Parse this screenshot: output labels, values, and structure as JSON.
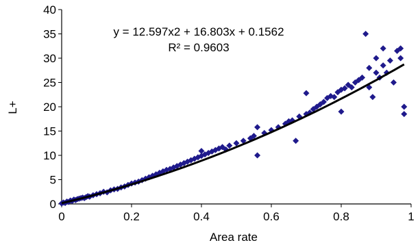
{
  "chart_data": {
    "type": "scatter",
    "title": "",
    "xlabel": "Area rate",
    "ylabel": "L+",
    "xlim": [
      0,
      1
    ],
    "ylim": [
      0,
      40
    ],
    "x_ticks": [
      "0",
      "0.2",
      "0.4",
      "0.6",
      "0.8",
      "1"
    ],
    "y_ticks": [
      "0",
      "5",
      "10",
      "15",
      "20",
      "25",
      "30",
      "35",
      "40"
    ],
    "grid": false,
    "legend": "none",
    "annotations": [
      "y = 12.597x2 + 16.803x + 0.1562",
      "R² = 0.9603"
    ],
    "colors": {
      "points": "#1f1a8c",
      "trendline": "#000000"
    },
    "series": [
      {
        "marker": "diamond",
        "x": [
          0.0,
          0.005,
          0.01,
          0.015,
          0.02,
          0.025,
          0.03,
          0.035,
          0.04,
          0.045,
          0.05,
          0.055,
          0.06,
          0.065,
          0.07,
          0.075,
          0.08,
          0.09,
          0.1,
          0.11,
          0.12,
          0.13,
          0.14,
          0.15,
          0.16,
          0.17,
          0.18,
          0.19,
          0.2,
          0.21,
          0.22,
          0.23,
          0.24,
          0.25,
          0.26,
          0.27,
          0.28,
          0.29,
          0.3,
          0.31,
          0.32,
          0.33,
          0.34,
          0.35,
          0.36,
          0.37,
          0.38,
          0.39,
          0.4,
          0.4,
          0.41,
          0.42,
          0.43,
          0.44,
          0.45,
          0.46,
          0.47,
          0.48,
          0.5,
          0.52,
          0.54,
          0.55,
          0.56,
          0.56,
          0.58,
          0.6,
          0.62,
          0.64,
          0.65,
          0.66,
          0.67,
          0.68,
          0.7,
          0.7,
          0.71,
          0.72,
          0.73,
          0.74,
          0.75,
          0.76,
          0.77,
          0.78,
          0.79,
          0.8,
          0.8,
          0.81,
          0.82,
          0.83,
          0.84,
          0.85,
          0.86,
          0.87,
          0.88,
          0.88,
          0.89,
          0.9,
          0.9,
          0.91,
          0.92,
          0.92,
          0.93,
          0.94,
          0.95,
          0.96,
          0.97,
          0.97,
          0.98,
          0.98
        ],
        "y": [
          0.1,
          0.3,
          0.2,
          0.5,
          0.4,
          0.7,
          0.6,
          0.9,
          0.8,
          1.0,
          1.1,
          1.2,
          1.3,
          1.2,
          1.4,
          1.6,
          1.5,
          1.8,
          2.0,
          2.2,
          2.5,
          2.4,
          2.8,
          3.0,
          3.1,
          3.4,
          3.6,
          3.9,
          4.2,
          4.4,
          4.6,
          4.9,
          5.2,
          5.5,
          5.8,
          6.1,
          6.4,
          6.7,
          7.0,
          7.2,
          7.5,
          7.8,
          8.1,
          8.4,
          8.7,
          9.0,
          9.3,
          9.6,
          9.9,
          10.9,
          10.2,
          10.5,
          10.8,
          11.1,
          11.4,
          11.7,
          11.2,
          12.0,
          12.5,
          13.0,
          13.5,
          14.0,
          15.8,
          10.0,
          14.6,
          15.2,
          15.8,
          16.5,
          17.0,
          17.2,
          13.0,
          18.0,
          18.5,
          22.8,
          18.8,
          19.5,
          20.0,
          20.5,
          21.0,
          21.8,
          22.2,
          22.0,
          23.0,
          23.5,
          19.0,
          23.8,
          24.5,
          24.0,
          25.0,
          25.5,
          26.0,
          35.0,
          28.0,
          24.0,
          22.0,
          27.0,
          30.0,
          26.0,
          32.0,
          28.5,
          27.0,
          29.5,
          25.0,
          31.5,
          30.0,
          32.0,
          20.0,
          18.5
        ]
      }
    ],
    "trendline": {
      "type": "polynomial",
      "coefficients": [
        12.597,
        16.803,
        0.1562
      ]
    }
  }
}
